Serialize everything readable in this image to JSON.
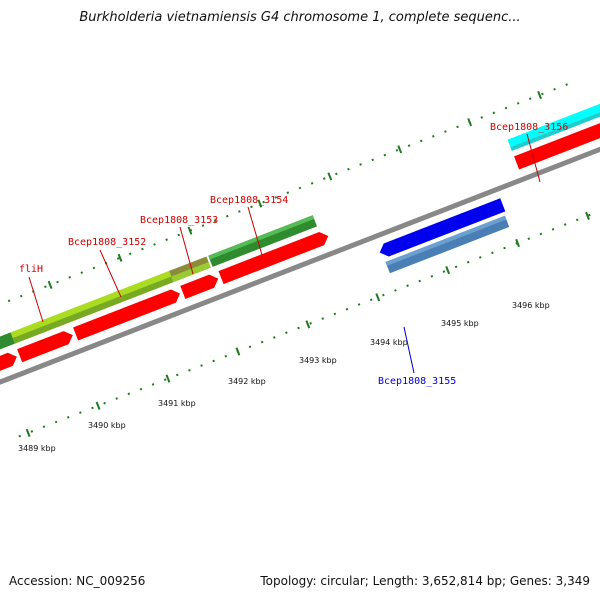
{
  "map": {
    "title": "Burkholderia vietnamiensis G4 chromosome 1, complete sequenc...",
    "accession_text": "Accession: NC_009256",
    "info_text": "Topology: circular; Length: 3,652,814 bp; Genes: 3,349",
    "colors": {
      "backbone": "#888888",
      "tick": "#1e7a1e",
      "forward_cds": "#ff0000",
      "forward_gene_dark": "#2e8b2e",
      "forward_gene_light": "#aadd22",
      "forward_gene_olive": "#8b8b3a",
      "reverse_cds": "#0000ee",
      "reverse_gene": "#4a7fb5",
      "highlight": "#00ffff",
      "label_forward": "#cc0000",
      "label_reverse": "#0000cc"
    }
  },
  "gene_labels": {
    "flih": "fliH",
    "bcep3152": "Bcep1808_3152",
    "bcep3153": "Bcep1808_3153",
    "bcep3154": "Bcep1808_3154",
    "bcep3155": "Bcep1808_3155",
    "bcep3156": "Bcep1808_3156"
  },
  "scale_labels": {
    "k3489": "3489 kbp",
    "k3490": "3490 kbp",
    "k3491": "3491 kbp",
    "k3492": "3492 kbp",
    "k3493": "3493 kbp",
    "k3494": "3494 kbp",
    "k3495": "3495 kbp",
    "k3496": "3496 kbp"
  }
}
